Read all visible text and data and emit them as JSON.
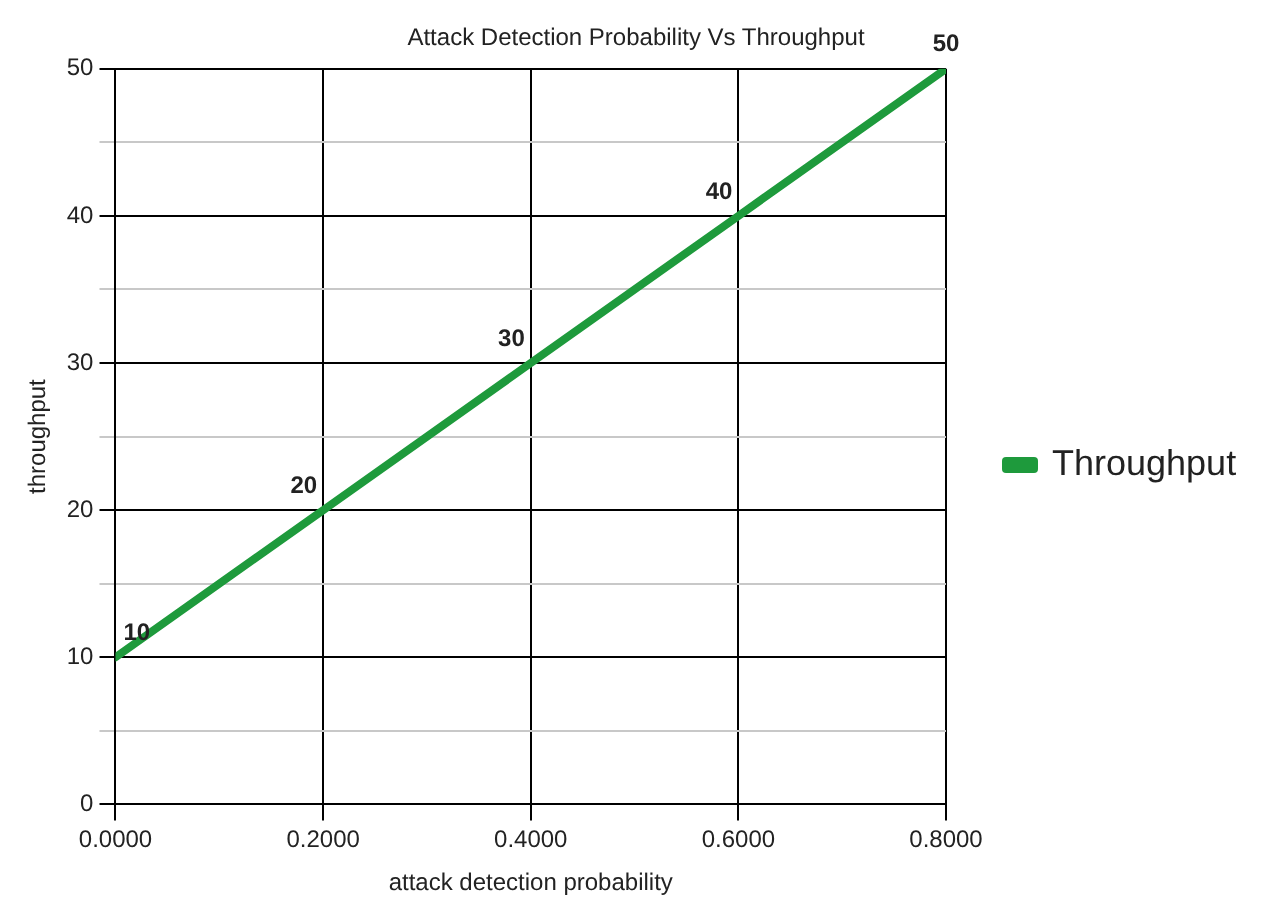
{
  "chart_data": {
    "type": "line",
    "title": "Attack Detection Probability Vs Throughput",
    "xlabel": "attack detection probability",
    "ylabel": "throughput",
    "x": [
      0,
      0.2,
      0.4,
      0.6,
      0.8
    ],
    "series": [
      {
        "name": "Throughput",
        "color": "#1e9a3c",
        "values": [
          10,
          20,
          30,
          40,
          50
        ]
      }
    ],
    "xlim": [
      0,
      0.8
    ],
    "xticks": [
      {
        "value": 0,
        "label": "0.0000"
      },
      {
        "value": 0.2,
        "label": "0.2000"
      },
      {
        "value": 0.4,
        "label": "0.4000"
      },
      {
        "value": 0.6,
        "label": "0.6000"
      },
      {
        "value": 0.8,
        "label": "0.8000"
      }
    ],
    "ylim": [
      0,
      50
    ],
    "yticks": [
      0,
      {
        "value": 5,
        "label": null
      },
      10,
      {
        "value": 15,
        "label": null
      },
      20,
      {
        "value": 25,
        "label": null
      },
      30,
      {
        "value": 35,
        "label": null
      },
      40,
      {
        "value": 45,
        "label": null
      },
      50
    ],
    "grid": true,
    "legend": "right",
    "marker": "none",
    "line_style": "solid",
    "data_labels": true
  }
}
